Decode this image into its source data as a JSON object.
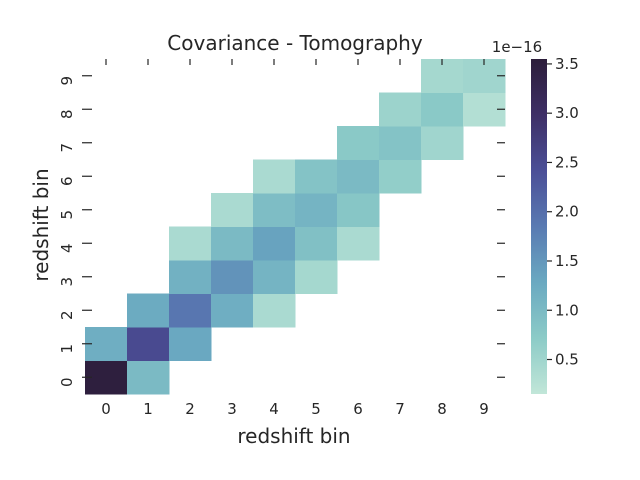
{
  "chart_data": {
    "type": "heatmap",
    "title": "Covariance - Tomography",
    "xlabel": "redshift bin",
    "ylabel": "redshift bin",
    "x_ticks": [
      "0",
      "1",
      "2",
      "3",
      "4",
      "5",
      "6",
      "7",
      "8",
      "9"
    ],
    "y_ticks": [
      "0",
      "1",
      "2",
      "3",
      "4",
      "5",
      "6",
      "7",
      "8",
      "9"
    ],
    "colorbar": {
      "offset_label": "1e−16",
      "ticks": [
        "0.5",
        "1.0",
        "1.5",
        "2.0",
        "2.5",
        "3.0",
        "3.5"
      ],
      "tick_values": [
        0.5,
        1.0,
        1.5,
        2.0,
        2.5,
        3.0,
        3.5
      ],
      "range": [
        0.15,
        3.55
      ]
    },
    "values": [
      [
        3.5,
        1.0,
        null,
        null,
        null,
        null,
        null,
        null,
        null,
        null
      ],
      [
        1.2,
        2.5,
        1.3,
        null,
        null,
        null,
        null,
        null,
        null,
        null
      ],
      [
        null,
        1.25,
        1.9,
        1.2,
        0.4,
        null,
        null,
        null,
        null,
        null
      ],
      [
        null,
        null,
        1.15,
        1.55,
        1.1,
        0.45,
        null,
        null,
        null,
        null
      ],
      [
        null,
        null,
        0.4,
        1.0,
        1.35,
        0.9,
        0.4,
        null,
        null,
        null
      ],
      [
        null,
        null,
        null,
        0.4,
        0.95,
        1.1,
        0.8,
        null,
        null,
        null
      ],
      [
        null,
        null,
        null,
        null,
        0.4,
        0.85,
        1.0,
        0.65,
        null,
        null
      ],
      [
        null,
        null,
        null,
        null,
        null,
        null,
        0.75,
        0.85,
        0.5,
        null
      ],
      [
        null,
        null,
        null,
        null,
        null,
        null,
        null,
        0.55,
        0.75,
        0.3
      ],
      [
        null,
        null,
        null,
        null,
        null,
        null,
        null,
        null,
        0.45,
        0.5
      ]
    ],
    "colormap": [
      "#c1e6d8",
      "#8ccbc7",
      "#6aa9c1",
      "#597ab2",
      "#4b4f97",
      "#3e2f66",
      "#2c1d3a"
    ],
    "grid": false,
    "legend": "none"
  }
}
